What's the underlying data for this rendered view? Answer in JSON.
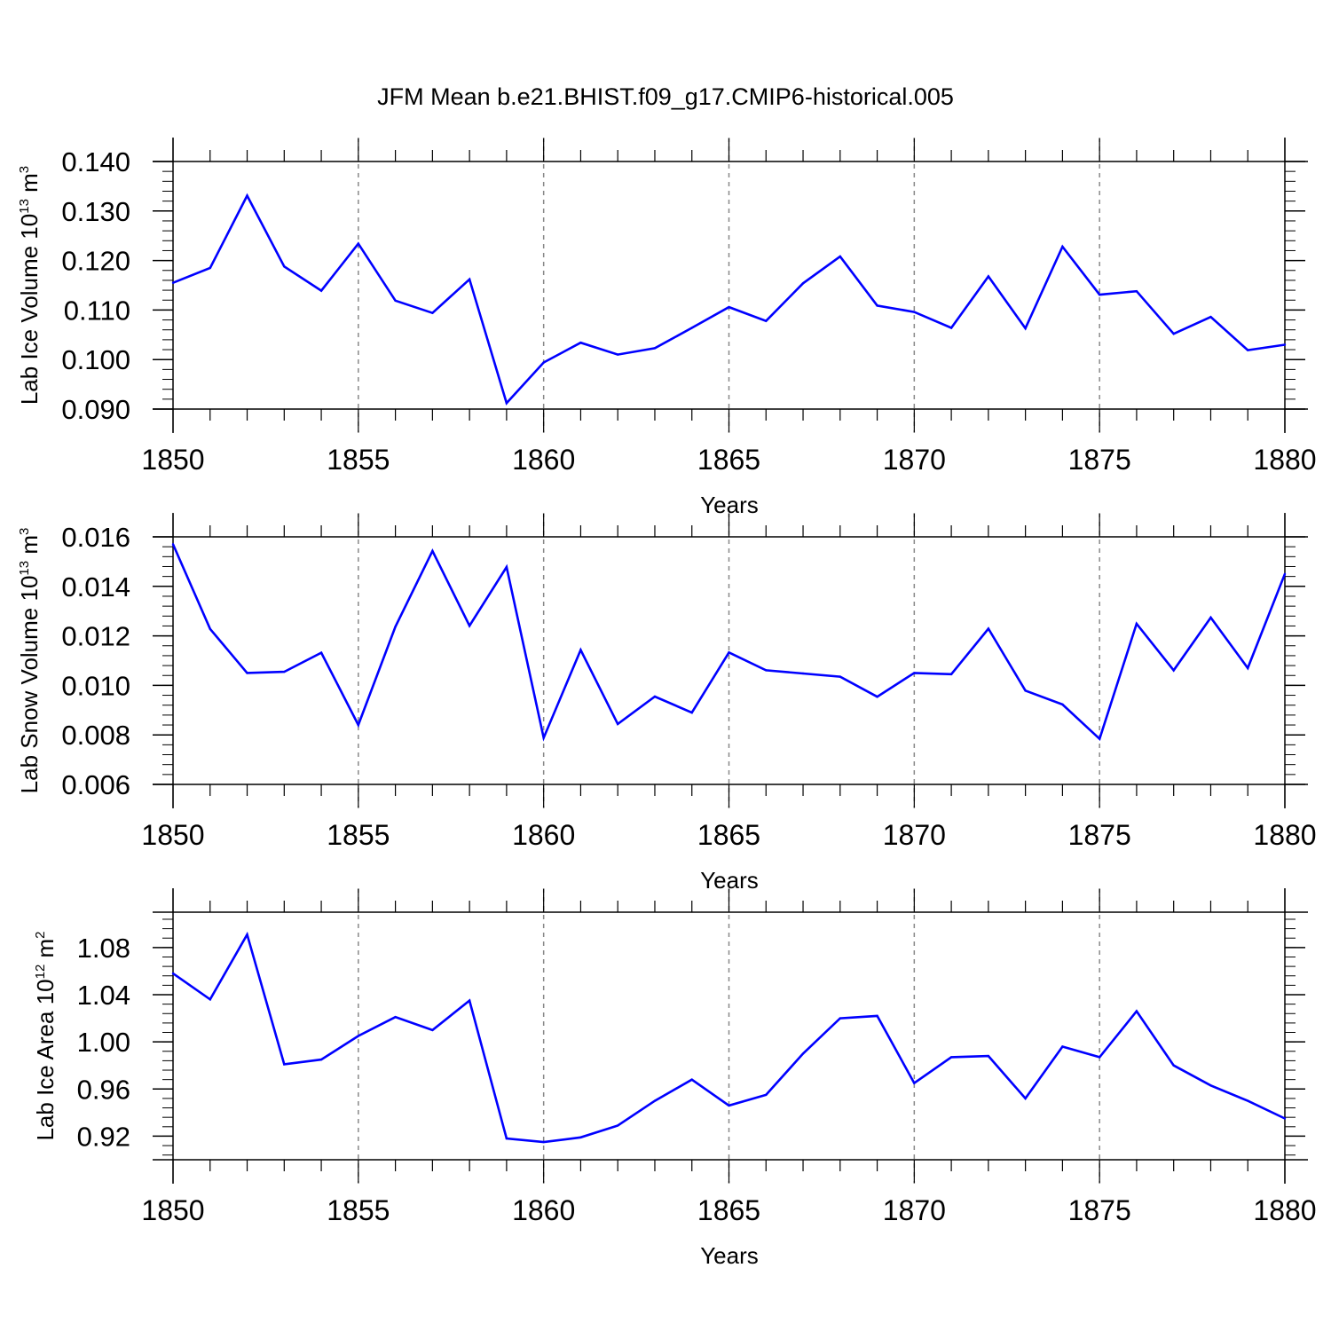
{
  "chart_data": [
    {
      "type": "line",
      "title": "JFM Mean b.e21.BHIST.f09_g17.CMIP6-historical.005",
      "xlabel": "Years",
      "ylabel": {
        "prefix": "Lab Ice Volume 10",
        "exponent": "13",
        "unit": " m",
        "unit_exponent": "3"
      },
      "xlim": [
        1850,
        1880
      ],
      "ylim": [
        0.09,
        0.14
      ],
      "yticks": [
        {
          "value": 0.09,
          "label": "0.090"
        },
        {
          "value": 0.1,
          "label": "0.100"
        },
        {
          "value": 0.11,
          "label": "0.110"
        },
        {
          "value": 0.12,
          "label": "0.120"
        },
        {
          "value": 0.13,
          "label": "0.130"
        },
        {
          "value": 0.14,
          "label": "0.140"
        }
      ],
      "xticks": [
        {
          "value": 1850,
          "label": "1850"
        },
        {
          "value": 1855,
          "label": "1855"
        },
        {
          "value": 1860,
          "label": "1860"
        },
        {
          "value": 1865,
          "label": "1865"
        },
        {
          "value": 1870,
          "label": "1870"
        },
        {
          "value": 1875,
          "label": "1875"
        },
        {
          "value": 1880,
          "label": "1880"
        }
      ],
      "grid": "vertical dashed at major x ticks",
      "line_color": "#0000ff",
      "x": [
        1850,
        1851,
        1852,
        1853,
        1854,
        1855,
        1856,
        1857,
        1858,
        1859,
        1860,
        1861,
        1862,
        1863,
        1864,
        1865,
        1866,
        1867,
        1868,
        1869,
        1870,
        1871,
        1872,
        1873,
        1874,
        1875,
        1876,
        1877,
        1878,
        1879,
        1880
      ],
      "values": [
        0.1155,
        0.1185,
        0.1331,
        0.1188,
        0.1139,
        0.1234,
        0.1119,
        0.1094,
        0.1162,
        0.0912,
        0.0994,
        0.1034,
        0.101,
        0.1023,
        0.1064,
        0.1106,
        0.1078,
        0.1154,
        0.1208,
        0.1109,
        0.1096,
        0.1064,
        0.1168,
        0.1063,
        0.1228,
        0.1131,
        0.1138,
        0.1052,
        0.1086,
        0.1019,
        0.103
      ]
    },
    {
      "type": "line",
      "xlabel": "Years",
      "ylabel": {
        "prefix": "Lab Snow Volume 10",
        "exponent": "13",
        "unit": " m",
        "unit_exponent": "3"
      },
      "xlim": [
        1850,
        1880
      ],
      "ylim": [
        0.006,
        0.016
      ],
      "yticks": [
        {
          "value": 0.006,
          "label": "0.006"
        },
        {
          "value": 0.008,
          "label": "0.008"
        },
        {
          "value": 0.01,
          "label": "0.010"
        },
        {
          "value": 0.012,
          "label": "0.012"
        },
        {
          "value": 0.014,
          "label": "0.014"
        },
        {
          "value": 0.016,
          "label": "0.016"
        }
      ],
      "xticks": [
        {
          "value": 1850,
          "label": "1850"
        },
        {
          "value": 1855,
          "label": "1855"
        },
        {
          "value": 1860,
          "label": "1860"
        },
        {
          "value": 1865,
          "label": "1865"
        },
        {
          "value": 1870,
          "label": "1870"
        },
        {
          "value": 1875,
          "label": "1875"
        },
        {
          "value": 1880,
          "label": "1880"
        }
      ],
      "grid": "vertical dashed at major x ticks",
      "line_color": "#0000ff",
      "x": [
        1850,
        1851,
        1852,
        1853,
        1854,
        1855,
        1856,
        1857,
        1858,
        1859,
        1860,
        1861,
        1862,
        1863,
        1864,
        1865,
        1866,
        1867,
        1868,
        1869,
        1870,
        1871,
        1872,
        1873,
        1874,
        1875,
        1876,
        1877,
        1878,
        1879,
        1880
      ],
      "values": [
        0.0157,
        0.01228,
        0.0105,
        0.01055,
        0.01132,
        0.0084,
        0.01237,
        0.01543,
        0.01241,
        0.01478,
        0.00788,
        0.01143,
        0.00844,
        0.00955,
        0.0089,
        0.01133,
        0.01061,
        0.01048,
        0.01035,
        0.00954,
        0.0105,
        0.01045,
        0.01229,
        0.00979,
        0.00923,
        0.00784,
        0.01249,
        0.01061,
        0.01274,
        0.0107,
        0.0145
      ]
    },
    {
      "type": "line",
      "xlabel": "Years",
      "ylabel": {
        "prefix": "Lab Ice Area 10",
        "exponent": "12",
        "unit": " m",
        "unit_exponent": "2"
      },
      "xlim": [
        1850,
        1880
      ],
      "ylim": [
        0.9,
        1.11
      ],
      "yticks": [
        {
          "value": 0.92,
          "label": "0.92"
        },
        {
          "value": 0.96,
          "label": "0.96"
        },
        {
          "value": 1.0,
          "label": "1.00"
        },
        {
          "value": 1.04,
          "label": "1.04"
        },
        {
          "value": 1.08,
          "label": "1.08"
        }
      ],
      "xticks": [
        {
          "value": 1850,
          "label": "1850"
        },
        {
          "value": 1855,
          "label": "1855"
        },
        {
          "value": 1860,
          "label": "1860"
        },
        {
          "value": 1865,
          "label": "1865"
        },
        {
          "value": 1870,
          "label": "1870"
        },
        {
          "value": 1875,
          "label": "1875"
        },
        {
          "value": 1880,
          "label": "1880"
        }
      ],
      "grid": "vertical dashed at major x ticks",
      "line_color": "#0000ff",
      "x": [
        1850,
        1851,
        1852,
        1853,
        1854,
        1855,
        1856,
        1857,
        1858,
        1859,
        1860,
        1861,
        1862,
        1863,
        1864,
        1865,
        1866,
        1867,
        1868,
        1869,
        1870,
        1871,
        1872,
        1873,
        1874,
        1875,
        1876,
        1877,
        1878,
        1879,
        1880
      ],
      "values": [
        1.058,
        1.036,
        1.091,
        0.981,
        0.985,
        1.005,
        1.021,
        1.01,
        1.035,
        0.918,
        0.915,
        0.919,
        0.929,
        0.95,
        0.968,
        0.946,
        0.955,
        0.99,
        1.02,
        1.022,
        0.965,
        0.987,
        0.988,
        0.952,
        0.996,
        0.987,
        1.026,
        0.98,
        0.963,
        0.95,
        0.935
      ]
    }
  ]
}
